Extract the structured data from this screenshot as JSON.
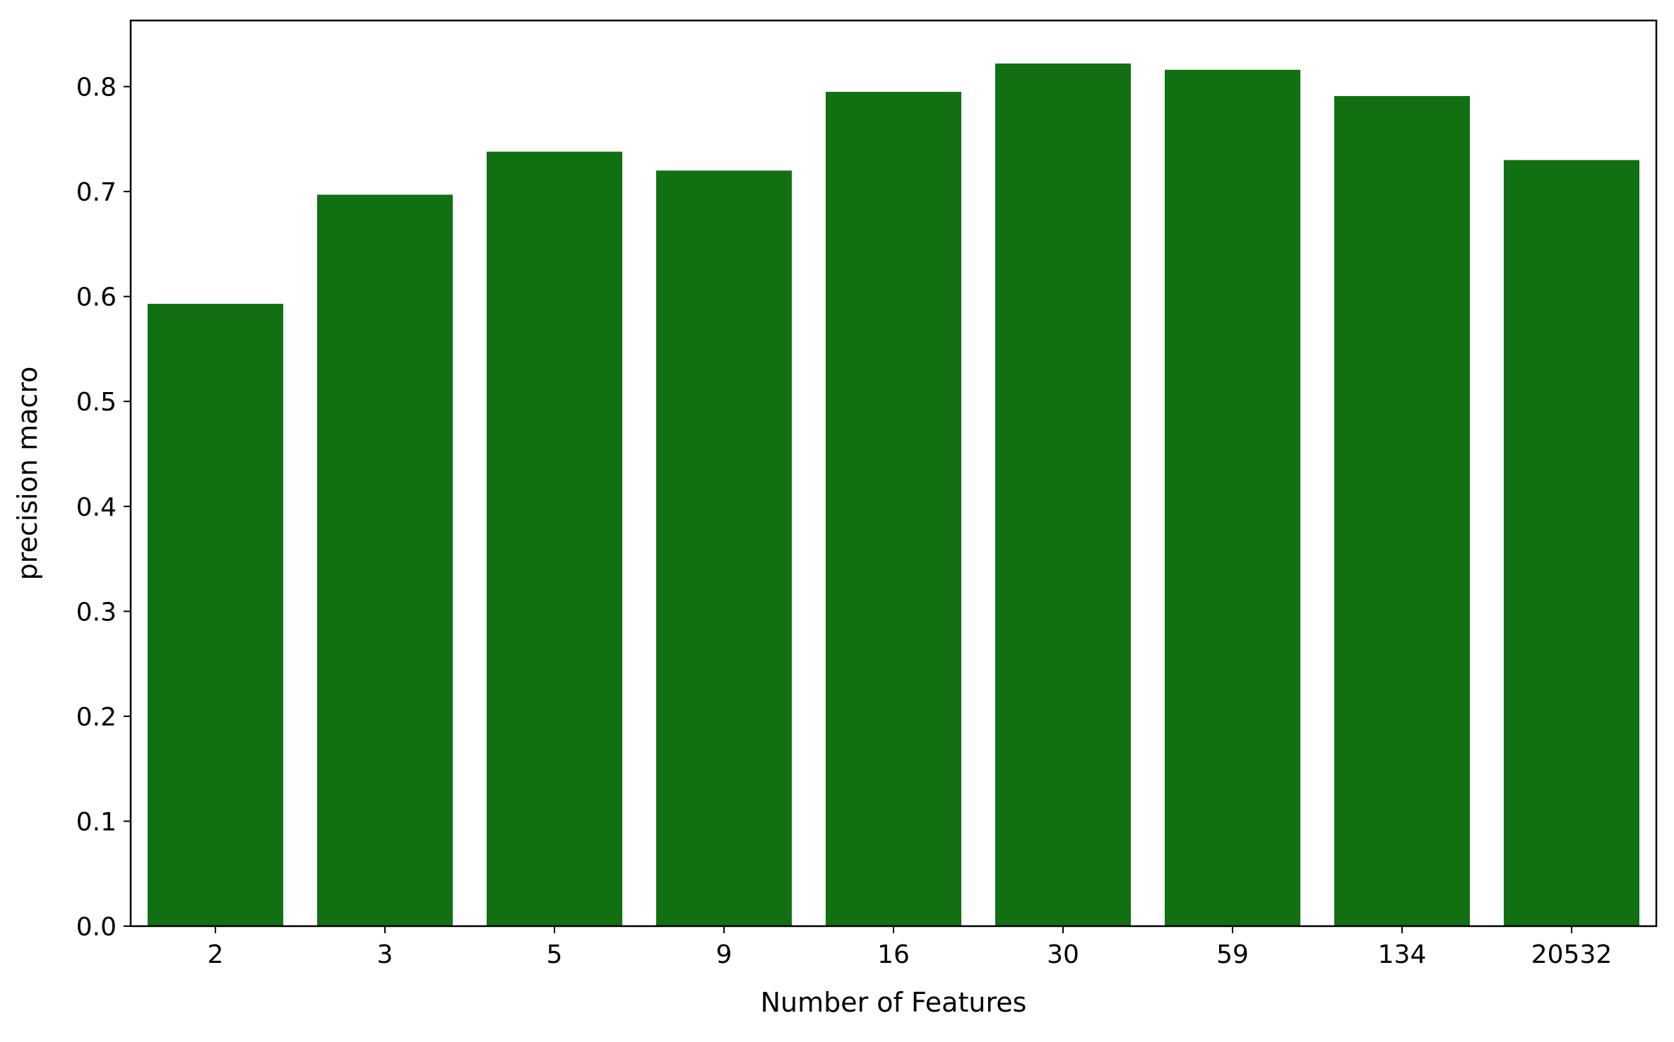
{
  "chart_data": {
    "type": "bar",
    "title": "",
    "xlabel": "Number of Features",
    "ylabel": "precision macro",
    "categories": [
      "2",
      "3",
      "5",
      "9",
      "16",
      "30",
      "59",
      "134",
      "20532"
    ],
    "values": [
      0.593,
      0.697,
      0.738,
      0.72,
      0.795,
      0.822,
      0.816,
      0.791,
      0.73
    ],
    "ylim": [
      0,
      0.863
    ],
    "yticks": [
      "0.0",
      "0.1",
      "0.2",
      "0.3",
      "0.4",
      "0.5",
      "0.6",
      "0.7",
      "0.8"
    ],
    "grid": false,
    "legend": "none",
    "bar_color": "#117011"
  }
}
